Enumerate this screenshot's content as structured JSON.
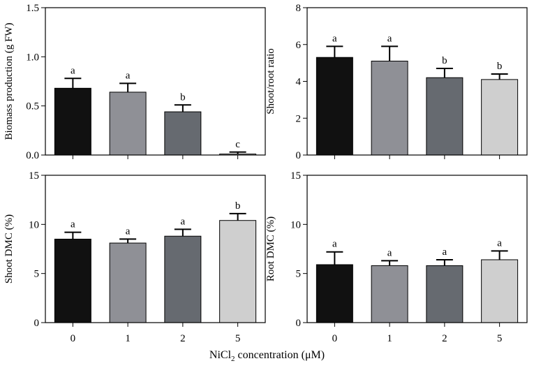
{
  "figure": {
    "x_title_prefix": "NiCl",
    "x_title_sub": "2",
    "x_title_suffix": " concentration (μM)"
  },
  "colors": [
    "#111111",
    "#8f9096",
    "#666a70",
    "#cfcfcf"
  ],
  "chart_data": [
    {
      "type": "bar",
      "panel": "top-left",
      "categories": [
        "0",
        "1",
        "2",
        "5"
      ],
      "values": [
        0.68,
        0.64,
        0.44,
        0.01
      ],
      "errors": [
        0.1,
        0.09,
        0.07,
        0.02
      ],
      "letters": [
        "a",
        "a",
        "b",
        "c"
      ],
      "ylabel": "Biomass production (g FW)",
      "ylim": [
        0,
        1.5
      ],
      "yticks": [
        0.0,
        0.5,
        1.0,
        1.5
      ],
      "ytick_labels": [
        "0.0",
        "0.5",
        "1.0",
        "1.5"
      ]
    },
    {
      "type": "bar",
      "panel": "top-right",
      "categories": [
        "0",
        "1",
        "2",
        "5"
      ],
      "values": [
        5.3,
        5.1,
        4.2,
        4.1
      ],
      "errors": [
        0.6,
        0.8,
        0.5,
        0.3
      ],
      "letters": [
        "a",
        "a",
        "b",
        "b"
      ],
      "ylabel": "Shoot/root ratio",
      "ylim": [
        0,
        8
      ],
      "yticks": [
        0,
        2,
        4,
        6,
        8
      ],
      "ytick_labels": [
        "0",
        "2",
        "4",
        "6",
        "8"
      ]
    },
    {
      "type": "bar",
      "panel": "bottom-left",
      "categories": [
        "0",
        "1",
        "2",
        "5"
      ],
      "values": [
        8.5,
        8.1,
        8.8,
        10.4
      ],
      "errors": [
        0.7,
        0.4,
        0.7,
        0.7
      ],
      "letters": [
        "a",
        "a",
        "a",
        "b"
      ],
      "ylabel": "Shoot DMC (%)",
      "ylim": [
        0,
        15
      ],
      "yticks": [
        0,
        5,
        10,
        15
      ],
      "ytick_labels": [
        "0",
        "5",
        "10",
        "15"
      ]
    },
    {
      "type": "bar",
      "panel": "bottom-right",
      "categories": [
        "0",
        "1",
        "2",
        "5"
      ],
      "values": [
        5.9,
        5.8,
        5.8,
        6.4
      ],
      "errors": [
        1.3,
        0.5,
        0.6,
        0.9
      ],
      "letters": [
        "a",
        "a",
        "a",
        "a"
      ],
      "ylabel": "Root DMC (%)",
      "ylim": [
        0,
        15
      ],
      "yticks": [
        0,
        5,
        10,
        15
      ],
      "ytick_labels": [
        "0",
        "5",
        "10",
        "15"
      ]
    }
  ]
}
